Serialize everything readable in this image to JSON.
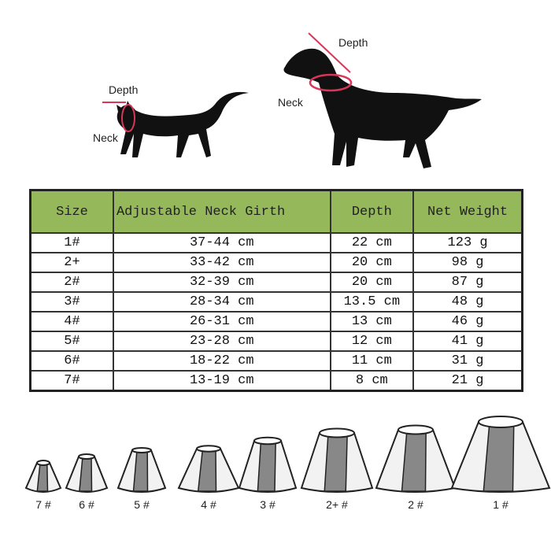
{
  "illustration": {
    "cat": {
      "depth_label": "Depth",
      "neck_label": "Neck"
    },
    "dog": {
      "depth_label": "Depth",
      "neck_label": "Neck"
    },
    "measure_color": "#d9365a"
  },
  "table": {
    "header_color": "#95b85a",
    "columns": [
      "Size",
      "Adjustable Neck Girth",
      "Depth",
      "Net Weight"
    ],
    "rows": [
      [
        "1#",
        "37-44 cm",
        "22 cm",
        "123 g"
      ],
      [
        "2+",
        "33-42 cm",
        "20 cm",
        "98 g"
      ],
      [
        "2#",
        "32-39 cm",
        "20 cm",
        "87 g"
      ],
      [
        "3#",
        "28-34 cm",
        "13.5 cm",
        "48 g"
      ],
      [
        "4#",
        "26-31 cm",
        "13 cm",
        "46 g"
      ],
      [
        "5#",
        "23-28 cm",
        "12 cm",
        "41 g"
      ],
      [
        "6#",
        "18-22 cm",
        "11 cm",
        "31 g"
      ],
      [
        "7#",
        "13-19 cm",
        "8 cm",
        "21 g"
      ]
    ]
  },
  "cones": [
    "7 #",
    "6 #",
    "5 #",
    "4 #",
    "3 #",
    "2+ #",
    "2 #",
    "1 #"
  ]
}
